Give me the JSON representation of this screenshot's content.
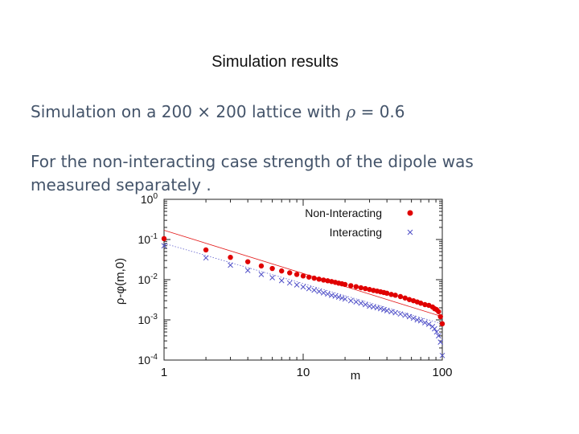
{
  "slide": {
    "title": "Simulation results",
    "line1_prefix": "Simulation on a 200 × 200 lattice with ",
    "line1_rho": "ρ",
    "line1_suffix": " = 0.6",
    "line2": "For the non-interacting case strength of the dipole was measured separately ."
  },
  "chart_data": {
    "type": "scatter",
    "title": "",
    "xlabel": "m",
    "ylabel": "ρ-φ(m,0)",
    "x_scale": "log",
    "y_scale": "log",
    "xlim": [
      1,
      100
    ],
    "ylim": [
      0.0001,
      1
    ],
    "x_ticks": [
      {
        "value": 1,
        "label": "1"
      },
      {
        "value": 10,
        "label": "10"
      },
      {
        "value": 100,
        "label": "100"
      }
    ],
    "y_ticks": [
      {
        "value": 1,
        "base": "10",
        "exp": "0"
      },
      {
        "value": 0.1,
        "base": "10",
        "exp": "-1"
      },
      {
        "value": 0.01,
        "base": "10",
        "exp": "-2"
      },
      {
        "value": 0.001,
        "base": "10",
        "exp": "-3"
      },
      {
        "value": 0.0001,
        "base": "10",
        "exp": "-4"
      }
    ],
    "grid": false,
    "legend": "top-right",
    "series": [
      {
        "name": "Non-Interacting",
        "marker": "circle",
        "color": "#e00000",
        "fit_line": {
          "x": [
            1,
            100
          ],
          "y": [
            0.17,
            0.0012
          ],
          "style": "solid"
        },
        "x": [
          1,
          2,
          3,
          4,
          5,
          6,
          7,
          8,
          9,
          10,
          11,
          12,
          13,
          14,
          15,
          16,
          17,
          18,
          19,
          20,
          22,
          24,
          26,
          28,
          30,
          32,
          34,
          36,
          38,
          40,
          43,
          46,
          50,
          54,
          58,
          62,
          66,
          70,
          75,
          80,
          85,
          88,
          91,
          94,
          97,
          100
        ],
        "y": [
          0.105,
          0.055,
          0.036,
          0.028,
          0.022,
          0.019,
          0.0165,
          0.0148,
          0.0135,
          0.0124,
          0.0116,
          0.0109,
          0.0103,
          0.0098,
          0.0094,
          0.009,
          0.0086,
          0.0082,
          0.0079,
          0.0076,
          0.0071,
          0.0067,
          0.0063,
          0.006,
          0.0057,
          0.0054,
          0.0052,
          0.005,
          0.0048,
          0.0046,
          0.0043,
          0.0041,
          0.0038,
          0.0035,
          0.0032,
          0.003,
          0.0028,
          0.0026,
          0.0024,
          0.0023,
          0.0021,
          0.0019,
          0.0018,
          0.0016,
          0.0012,
          0.0008
        ]
      },
      {
        "name": "Interacting",
        "marker": "x",
        "color": "#5050c8",
        "fit_line": {
          "x": [
            1,
            100
          ],
          "y": [
            0.08,
            0.0008
          ],
          "style": "dotted"
        },
        "x": [
          1,
          2,
          3,
          4,
          5,
          6,
          7,
          8,
          9,
          10,
          11,
          12,
          13,
          14,
          15,
          16,
          17,
          18,
          19,
          20,
          22,
          24,
          26,
          28,
          30,
          32,
          34,
          36,
          38,
          40,
          43,
          46,
          50,
          54,
          58,
          62,
          66,
          70,
          75,
          80,
          85,
          88,
          91,
          94,
          97,
          100
        ],
        "y": [
          0.07,
          0.035,
          0.023,
          0.017,
          0.0135,
          0.0112,
          0.0095,
          0.0083,
          0.0074,
          0.0066,
          0.006,
          0.0055,
          0.0051,
          0.0047,
          0.0044,
          0.0041,
          0.0039,
          0.0037,
          0.0035,
          0.0033,
          0.003,
          0.0028,
          0.0026,
          0.0024,
          0.0022,
          0.0021,
          0.002,
          0.0019,
          0.0018,
          0.0017,
          0.0016,
          0.0015,
          0.0014,
          0.0013,
          0.0012,
          0.0011,
          0.001,
          0.00095,
          0.00085,
          0.00078,
          0.00068,
          0.0006,
          0.0005,
          0.0004,
          0.00028,
          0.00013
        ]
      }
    ]
  }
}
